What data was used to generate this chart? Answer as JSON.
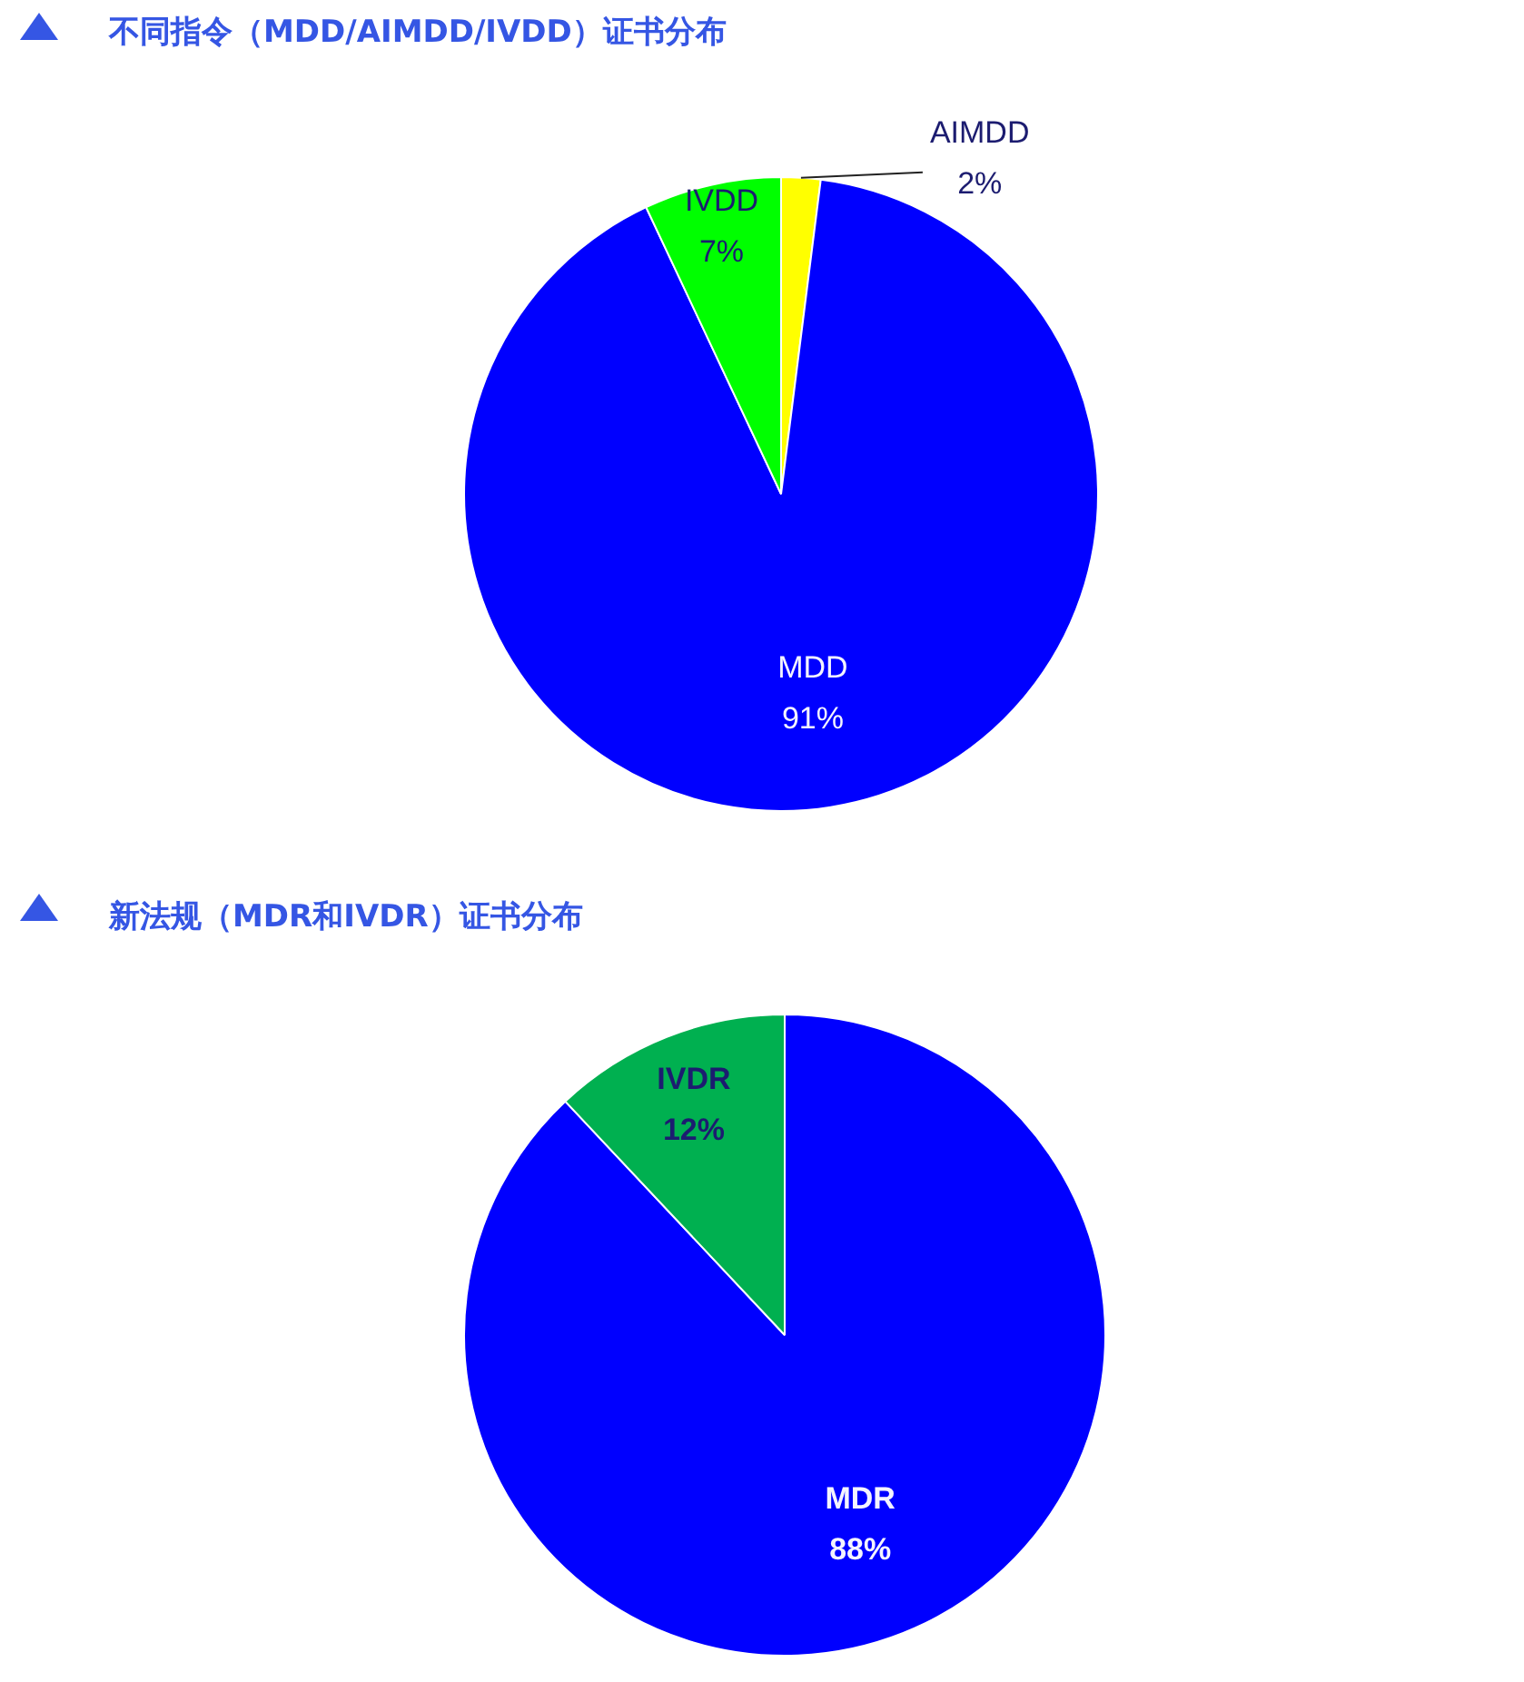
{
  "chart_data": [
    {
      "type": "pie",
      "title": "不同指令（MDD/AIMDD/IVDD）证书分布",
      "categories": [
        "AIMDD",
        "MDD",
        "IVDD"
      ],
      "values": [
        2,
        91,
        7
      ],
      "colors": [
        "#ffff00",
        "#0000ff",
        "#00ff00"
      ],
      "value_labels": [
        "2%",
        "91%",
        "7%"
      ]
    },
    {
      "type": "pie",
      "title": "新法规（MDR和IVDR）证书分布",
      "categories": [
        "MDR",
        "IVDR"
      ],
      "values": [
        88,
        12
      ],
      "colors": [
        "#0000ff",
        "#00b050"
      ],
      "value_labels": [
        "88%",
        "12%"
      ]
    }
  ]
}
